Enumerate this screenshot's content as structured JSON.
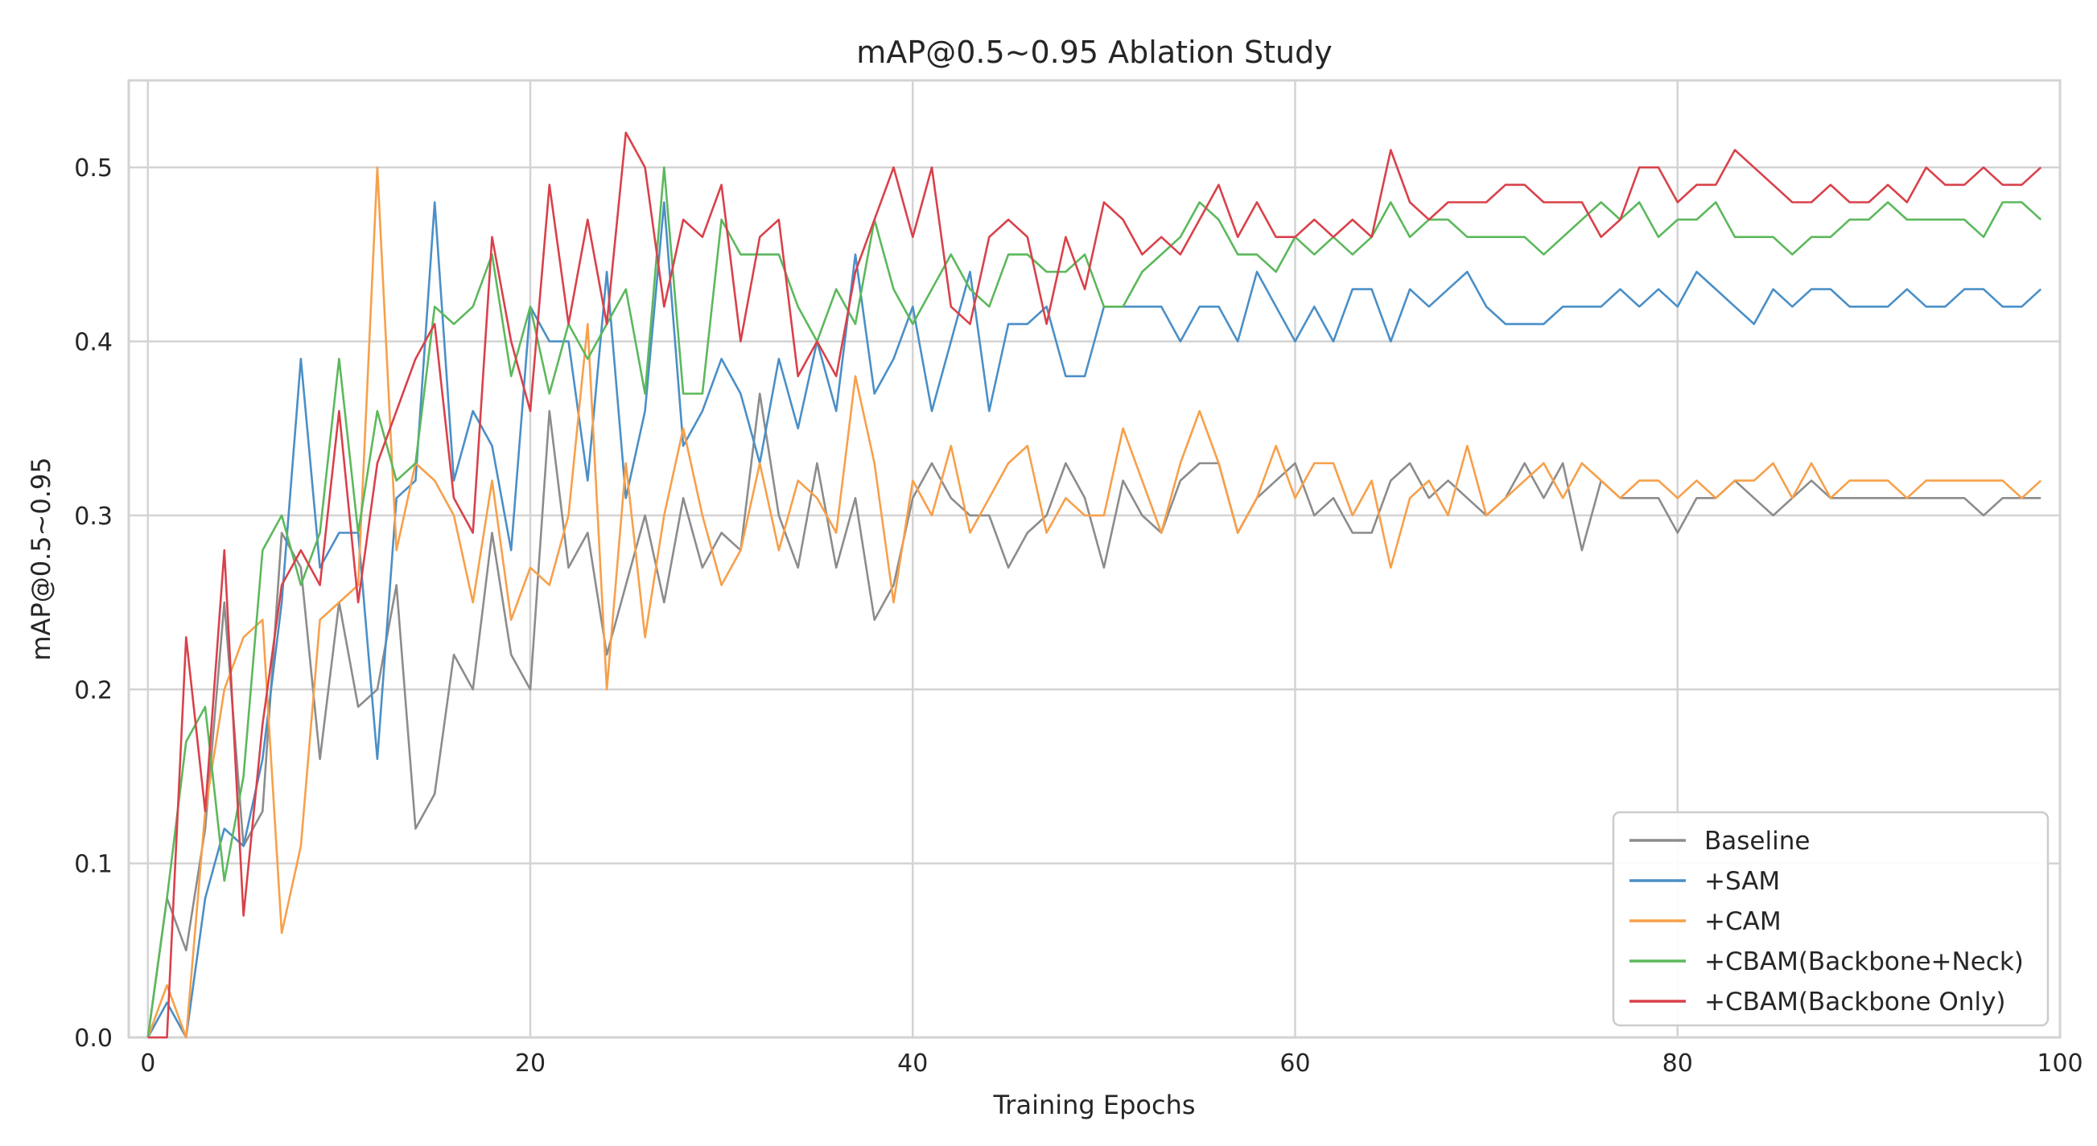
{
  "chart_data": {
    "type": "line",
    "title": "mAP@0.5~0.95 Ablation Study",
    "xlabel": "Training Epochs",
    "ylabel": "mAP@0.5~0.95",
    "xlim": [
      -1,
      100
    ],
    "ylim": [
      0,
      0.55
    ],
    "xticks": [
      0,
      20,
      40,
      60,
      80,
      100
    ],
    "xtick_labels": [
      "0",
      "20",
      "40",
      "60",
      "80",
      "100"
    ],
    "yticks": [
      0,
      0.1,
      0.2,
      0.3,
      0.4,
      0.5
    ],
    "ytick_labels": [
      "0.0",
      "0.1",
      "0.2",
      "0.3",
      "0.4",
      "0.5"
    ],
    "grid": true,
    "legend": "lower-right",
    "series": [
      {
        "name": "Baseline",
        "color": "#8c8c8c",
        "values": [
          0,
          0.08,
          0.05,
          0.12,
          0.25,
          0.11,
          0.13,
          0.29,
          0.27,
          0.16,
          0.25,
          0.19,
          0.2,
          0.26,
          0.12,
          0.14,
          0.22,
          0.2,
          0.29,
          0.22,
          0.2,
          0.36,
          0.27,
          0.29,
          0.22,
          0.26,
          0.3,
          0.25,
          0.31,
          0.27,
          0.29,
          0.28,
          0.37,
          0.3,
          0.27,
          0.33,
          0.27,
          0.31,
          0.24,
          0.26,
          0.31,
          0.33,
          0.31,
          0.3,
          0.3,
          0.27,
          0.29,
          0.3,
          0.33,
          0.31,
          0.27,
          0.32,
          0.3,
          0.29,
          0.32,
          0.33,
          0.33,
          0.29,
          0.31,
          0.32,
          0.33,
          0.3,
          0.31,
          0.29,
          0.29,
          0.32,
          0.33,
          0.31,
          0.32,
          0.31,
          0.3,
          0.31,
          0.33,
          0.31,
          0.33,
          0.28,
          0.32,
          0.31,
          0.31,
          0.31,
          0.29,
          0.31,
          0.31,
          0.32,
          0.31,
          0.3,
          0.31,
          0.32,
          0.31,
          0.31,
          0.31,
          0.31,
          0.31,
          0.31,
          0.31,
          0.31,
          0.3,
          0.31,
          0.31,
          0.31
        ]
      },
      {
        "name": "+SAM",
        "color": "#4a8fc7",
        "values": [
          0,
          0.02,
          0,
          0.08,
          0.12,
          0.11,
          0.16,
          0.25,
          0.39,
          0.27,
          0.29,
          0.29,
          0.16,
          0.31,
          0.32,
          0.48,
          0.32,
          0.36,
          0.34,
          0.28,
          0.42,
          0.4,
          0.4,
          0.32,
          0.44,
          0.31,
          0.36,
          0.48,
          0.34,
          0.36,
          0.39,
          0.37,
          0.33,
          0.39,
          0.35,
          0.4,
          0.36,
          0.45,
          0.37,
          0.39,
          0.42,
          0.36,
          0.4,
          0.44,
          0.36,
          0.41,
          0.41,
          0.42,
          0.38,
          0.38,
          0.42,
          0.42,
          0.42,
          0.42,
          0.4,
          0.42,
          0.42,
          0.4,
          0.44,
          0.42,
          0.4,
          0.42,
          0.4,
          0.43,
          0.43,
          0.4,
          0.43,
          0.42,
          0.43,
          0.44,
          0.42,
          0.41,
          0.41,
          0.41,
          0.42,
          0.42,
          0.42,
          0.43,
          0.42,
          0.43,
          0.42,
          0.44,
          0.43,
          0.42,
          0.41,
          0.43,
          0.42,
          0.43,
          0.43,
          0.42,
          0.42,
          0.42,
          0.43,
          0.42,
          0.42,
          0.43,
          0.43,
          0.42,
          0.42,
          0.43
        ]
      },
      {
        "name": "+CAM",
        "color": "#f7a04a",
        "values": [
          0,
          0.03,
          0,
          0.13,
          0.2,
          0.23,
          0.24,
          0.06,
          0.11,
          0.24,
          0.25,
          0.26,
          0.5,
          0.28,
          0.33,
          0.32,
          0.3,
          0.25,
          0.32,
          0.24,
          0.27,
          0.26,
          0.3,
          0.41,
          0.2,
          0.33,
          0.23,
          0.3,
          0.35,
          0.3,
          0.26,
          0.28,
          0.33,
          0.28,
          0.32,
          0.31,
          0.29,
          0.38,
          0.33,
          0.25,
          0.32,
          0.3,
          0.34,
          0.29,
          0.31,
          0.33,
          0.34,
          0.29,
          0.31,
          0.3,
          0.3,
          0.35,
          0.32,
          0.29,
          0.33,
          0.36,
          0.33,
          0.29,
          0.31,
          0.34,
          0.31,
          0.33,
          0.33,
          0.3,
          0.32,
          0.27,
          0.31,
          0.32,
          0.3,
          0.34,
          0.3,
          0.31,
          0.32,
          0.33,
          0.31,
          0.33,
          0.32,
          0.31,
          0.32,
          0.32,
          0.31,
          0.32,
          0.31,
          0.32,
          0.32,
          0.33,
          0.31,
          0.33,
          0.31,
          0.32,
          0.32,
          0.32,
          0.31,
          0.32,
          0.32,
          0.32,
          0.32,
          0.32,
          0.31,
          0.32
        ]
      },
      {
        "name": "+CBAM(Backbone+Neck)",
        "color": "#5cb85c",
        "values": [
          0,
          0.08,
          0.17,
          0.19,
          0.09,
          0.15,
          0.28,
          0.3,
          0.26,
          0.29,
          0.39,
          0.29,
          0.36,
          0.32,
          0.33,
          0.42,
          0.41,
          0.42,
          0.45,
          0.38,
          0.42,
          0.37,
          0.41,
          0.39,
          0.41,
          0.43,
          0.37,
          0.5,
          0.37,
          0.37,
          0.47,
          0.45,
          0.45,
          0.45,
          0.42,
          0.4,
          0.43,
          0.41,
          0.47,
          0.43,
          0.41,
          0.43,
          0.45,
          0.43,
          0.42,
          0.45,
          0.45,
          0.44,
          0.44,
          0.45,
          0.42,
          0.42,
          0.44,
          0.45,
          0.46,
          0.48,
          0.47,
          0.45,
          0.45,
          0.44,
          0.46,
          0.45,
          0.46,
          0.45,
          0.46,
          0.48,
          0.46,
          0.47,
          0.47,
          0.46,
          0.46,
          0.46,
          0.46,
          0.45,
          0.46,
          0.47,
          0.48,
          0.47,
          0.48,
          0.46,
          0.47,
          0.47,
          0.48,
          0.46,
          0.46,
          0.46,
          0.45,
          0.46,
          0.46,
          0.47,
          0.47,
          0.48,
          0.47,
          0.47,
          0.47,
          0.47,
          0.46,
          0.48,
          0.48,
          0.47
        ]
      },
      {
        "name": "+CBAM(Backbone Only)",
        "color": "#d9414a",
        "values": [
          0,
          0,
          0.23,
          0.13,
          0.28,
          0.07,
          0.18,
          0.26,
          0.28,
          0.26,
          0.36,
          0.25,
          0.33,
          0.36,
          0.39,
          0.41,
          0.31,
          0.29,
          0.46,
          0.4,
          0.36,
          0.49,
          0.41,
          0.47,
          0.41,
          0.52,
          0.5,
          0.42,
          0.47,
          0.46,
          0.49,
          0.4,
          0.46,
          0.47,
          0.38,
          0.4,
          0.38,
          0.44,
          0.47,
          0.5,
          0.46,
          0.5,
          0.42,
          0.41,
          0.46,
          0.47,
          0.46,
          0.41,
          0.46,
          0.43,
          0.48,
          0.47,
          0.45,
          0.46,
          0.45,
          0.47,
          0.49,
          0.46,
          0.48,
          0.46,
          0.46,
          0.47,
          0.46,
          0.47,
          0.46,
          0.51,
          0.48,
          0.47,
          0.48,
          0.48,
          0.48,
          0.49,
          0.49,
          0.48,
          0.48,
          0.48,
          0.46,
          0.47,
          0.5,
          0.5,
          0.48,
          0.49,
          0.49,
          0.51,
          0.5,
          0.49,
          0.48,
          0.48,
          0.49,
          0.48,
          0.48,
          0.49,
          0.48,
          0.5,
          0.49,
          0.49,
          0.5,
          0.49,
          0.49,
          0.5
        ]
      }
    ]
  }
}
